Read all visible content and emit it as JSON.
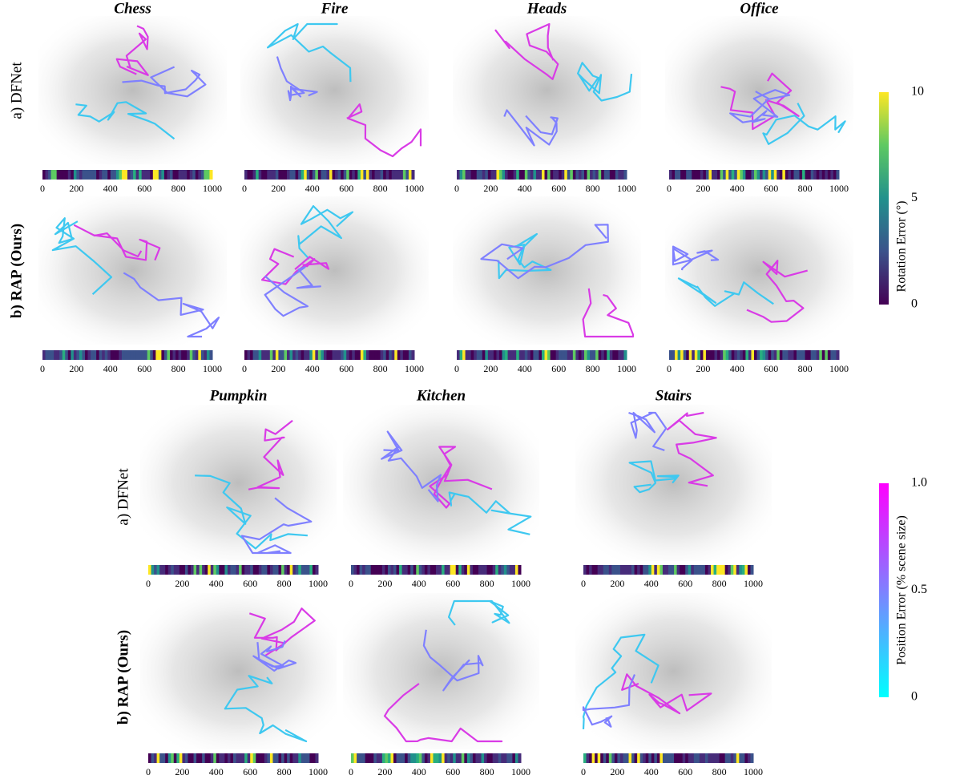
{
  "figure": {
    "top_scenes": [
      "Chess",
      "Fire",
      "Heads",
      "Office"
    ],
    "bottom_scenes": [
      "Pumpkin",
      "Kitchen",
      "Stairs"
    ],
    "row_labels": [
      "a) DFNet",
      "b) RAP (Ours)"
    ],
    "strip_ticks": [
      "0",
      "200",
      "400",
      "600",
      "800",
      "1000"
    ],
    "rotation_colorbar": {
      "title": "Rotation Error (°)",
      "ticks": [
        "0",
        "5",
        "10"
      ]
    },
    "position_colorbar": {
      "title": "Position Error (% scene size)",
      "ticks": [
        "0",
        "0.5",
        "1.0"
      ]
    }
  }
}
